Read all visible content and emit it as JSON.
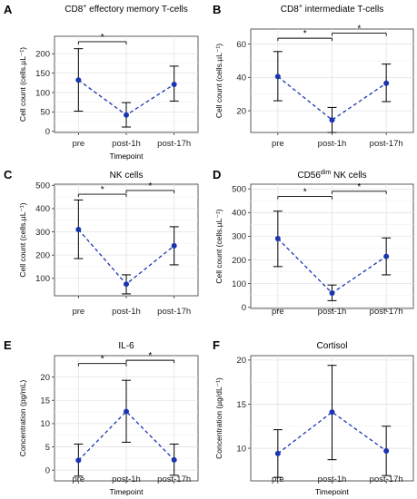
{
  "chart_data": [
    {
      "type": "line",
      "panel_letter": "A",
      "title": "CD8+ effectory memory T-cells",
      "title_parts": {
        "pre": "CD8",
        "sup": "+",
        "post": " effectory memory T-cells"
      },
      "ylabel": "Cell count (cells.µL⁻¹)",
      "xlabel": "Timepoint",
      "categories": [
        "pre",
        "post-1h",
        "post-17h"
      ],
      "ylim": [
        -3,
        245
      ],
      "yticks": [
        "0",
        "50",
        "100",
        "150",
        "200"
      ],
      "ytick_values": [
        0,
        50,
        100,
        150,
        200
      ],
      "series": [
        {
          "mean": [
            132,
            42,
            121
          ],
          "lower": [
            52,
            11,
            78
          ],
          "upper": [
            213,
            74,
            168
          ]
        }
      ],
      "brackets": [
        {
          "from": 0,
          "to": 1,
          "y": 231,
          "label": "*"
        }
      ],
      "color": "#1a35b0"
    },
    {
      "type": "line",
      "panel_letter": "B",
      "title": "CD8+ intermediate T-cells",
      "title_parts": {
        "pre": "CD8",
        "sup": "+",
        "post": " intermediate T-cells"
      },
      "ylabel": "Cell count (cells.µL⁻¹)",
      "xlabel": "",
      "categories": [
        "pre",
        "post-1h",
        "post-17h"
      ],
      "ylim": [
        7,
        69
      ],
      "yticks": [
        "20",
        "40",
        "60"
      ],
      "ytick_values": [
        20,
        40,
        60
      ],
      "series": [
        {
          "mean": [
            40.5,
            14.5,
            36.5
          ],
          "lower": [
            26,
            7,
            25.5
          ],
          "upper": [
            55.5,
            22,
            48
          ]
        }
      ],
      "brackets": [
        {
          "from": 0,
          "to": 1,
          "y": 63.5,
          "label": "*"
        },
        {
          "from": 1,
          "to": 2,
          "y": 66.5,
          "label": "*"
        }
      ],
      "color": "#1a35b0"
    },
    {
      "type": "line",
      "panel_letter": "C",
      "title": "NK cells",
      "title_parts": {
        "pre": "NK cells",
        "sup": "",
        "post": ""
      },
      "ylabel": "Cell count (cells.µL⁻¹)",
      "xlabel": "",
      "categories": [
        "pre",
        "post-1h",
        "post-17h"
      ],
      "ylim": [
        25,
        505
      ],
      "yticks": [
        "100",
        "200",
        "300",
        "400",
        "500"
      ],
      "ytick_values": [
        100,
        200,
        300,
        400,
        500
      ],
      "series": [
        {
          "mean": [
            310,
            75,
            240
          ],
          "lower": [
            185,
            33,
            158
          ],
          "upper": [
            437,
            115,
            322
          ]
        }
      ],
      "brackets": [
        {
          "from": 0,
          "to": 1,
          "y": 462,
          "label": "*"
        },
        {
          "from": 1,
          "to": 2,
          "y": 478,
          "label": "*"
        }
      ],
      "color": "#1a35b0"
    },
    {
      "type": "line",
      "panel_letter": "D",
      "title": "CD56dim NK cells",
      "title_parts": {
        "pre": "CD56",
        "sup": "dim",
        "post": " NK cells"
      },
      "ylabel": "Cell count (cells.µL⁻¹)",
      "xlabel": "",
      "categories": [
        "pre",
        "post-1h",
        "post-17h"
      ],
      "ylim": [
        -5,
        520
      ],
      "yticks": [
        "0",
        "100",
        "200",
        "300",
        "400",
        "500"
      ],
      "ytick_values": [
        0,
        100,
        200,
        300,
        400,
        500
      ],
      "series": [
        {
          "mean": [
            290,
            60,
            215
          ],
          "lower": [
            172,
            28,
            137
          ],
          "upper": [
            406,
            94,
            293
          ]
        }
      ],
      "brackets": [
        {
          "from": 0,
          "to": 1,
          "y": 468,
          "label": "*"
        },
        {
          "from": 1,
          "to": 2,
          "y": 490,
          "label": "*"
        }
      ],
      "color": "#1a35b0"
    },
    {
      "type": "line",
      "panel_letter": "E",
      "title": "IL-6",
      "title_parts": {
        "pre": "IL-6",
        "sup": "",
        "post": ""
      },
      "ylabel": "Concentration (pg/mL)",
      "xlabel": "Timepoint",
      "categories": [
        "pre",
        "post-1h",
        "post-17h"
      ],
      "ylim": [
        -2.3,
        24.6
      ],
      "yticks": [
        "0",
        "5",
        "10",
        "15",
        "20"
      ],
      "ytick_values": [
        0,
        5,
        10,
        15,
        20
      ],
      "series": [
        {
          "mean": [
            2.1,
            12.6,
            2.2
          ],
          "lower": [
            -1.3,
            6.0,
            -1.1
          ],
          "upper": [
            5.6,
            19.3,
            5.6
          ]
        }
      ],
      "brackets": [
        {
          "from": 0,
          "to": 1,
          "y": 22.9,
          "label": "*"
        },
        {
          "from": 1,
          "to": 2,
          "y": 23.6,
          "label": "*"
        }
      ],
      "color": "#1a35b0"
    },
    {
      "type": "line",
      "panel_letter": "F",
      "title": "Cortisol",
      "title_parts": {
        "pre": "Cortisol",
        "sup": "",
        "post": ""
      },
      "ylabel": "Concentration (µg/dL⁻¹)",
      "xlabel": "Timepoint",
      "categories": [
        "pre",
        "post-1h",
        "post-17h"
      ],
      "ylim": [
        6.3,
        20.5
      ],
      "yticks": [
        "10",
        "15",
        "20"
      ],
      "ytick_values": [
        10,
        15,
        20
      ],
      "series": [
        {
          "mean": [
            9.4,
            14.1,
            9.7
          ],
          "lower": [
            6.7,
            8.7,
            6.9
          ],
          "upper": [
            12.1,
            19.4,
            12.5
          ]
        }
      ],
      "brackets": [],
      "color": "#1a35b0"
    }
  ]
}
